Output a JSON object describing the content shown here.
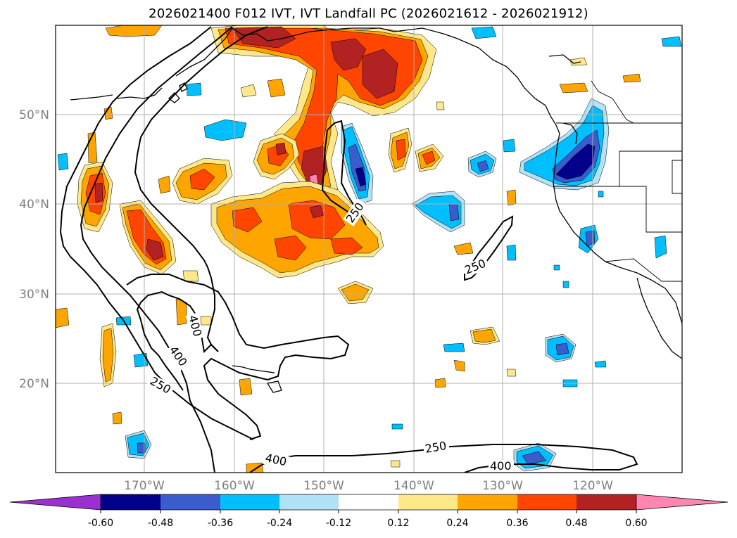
{
  "title": "2026021400 F012 IVT, IVT Landfall PC (2026021612 - 2026021912)",
  "colors": {
    "c1": "#9b30d0",
    "c2": "#00008b",
    "c3": "#3a5ccc",
    "c4": "#00bfff",
    "c5": "#b2e2f8",
    "c6": "#ffffff",
    "c7": "#ffe88a",
    "c8": "#ffa500",
    "c9": "#ff4500",
    "c10": "#b22222",
    "c11": "#ff85b3"
  },
  "latitude_labels": [
    "50°N",
    "40°N",
    "30°N",
    "20°N"
  ],
  "longitude_labels": [
    "170°W",
    "160°W",
    "150°W",
    "140°W",
    "130°W",
    "120°W"
  ],
  "contour_labels": [
    "250",
    "250",
    "250",
    "250",
    "400",
    "400",
    "400",
    "400"
  ],
  "colorbar": {
    "ticks": [
      "-0.60",
      "-0.48",
      "-0.36",
      "-0.24",
      "-0.12",
      "0.12",
      "0.24",
      "0.36",
      "0.48",
      "0.60"
    ]
  }
}
